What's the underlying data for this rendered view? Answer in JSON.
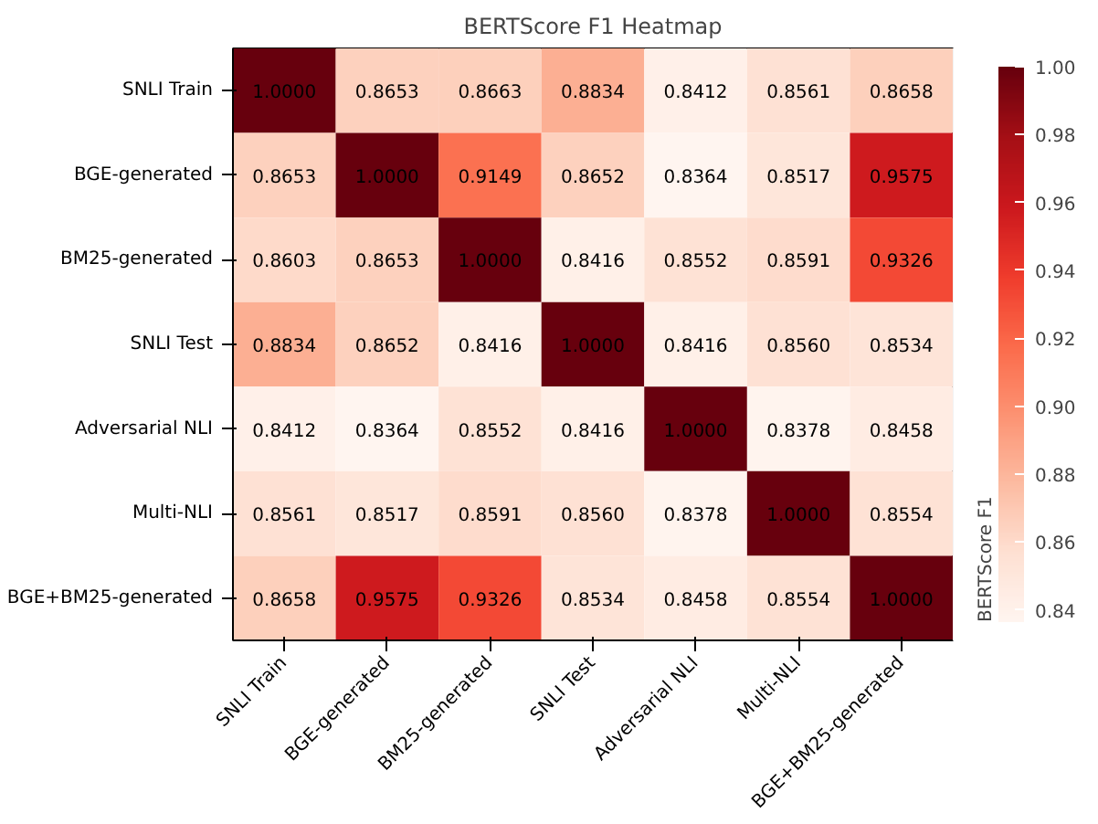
{
  "chart_data": {
    "type": "heatmap",
    "title": "BERTScore F1 Heatmap",
    "clabel": "BERTScore F1",
    "categories": [
      "SNLI Train",
      "BGE-generated",
      "BM25-generated",
      "SNLI Test",
      "Adversarial NLI",
      "Multi-NLI",
      "BGE+BM25-generated"
    ],
    "y_categories": [
      "SNLI Train",
      "BGE-generated",
      "BM25-generated",
      "SNLI Test",
      "Adversarial NLI",
      "Multi-NLI",
      "BGE+BM25-generated"
    ],
    "cells": [
      [
        1.0,
        0.8653,
        0.8663,
        0.8834,
        0.8412,
        0.8561,
        0.8658
      ],
      [
        0.8653,
        1.0,
        0.9149,
        0.8652,
        0.8364,
        0.8517,
        0.9575
      ],
      [
        0.8603,
        0.8653,
        1.0,
        0.8416,
        0.8552,
        0.8591,
        0.9326
      ],
      [
        0.8834,
        0.8652,
        0.8416,
        1.0,
        0.8416,
        0.856,
        0.8534
      ],
      [
        0.8412,
        0.8364,
        0.8552,
        0.8416,
        1.0,
        0.8378,
        0.8458
      ],
      [
        0.8561,
        0.8517,
        0.8591,
        0.856,
        0.8378,
        1.0,
        0.8554
      ],
      [
        0.8658,
        0.9575,
        0.9326,
        0.8534,
        0.8458,
        0.8554,
        1.0
      ]
    ],
    "clim": [
      0.8364,
      1.0
    ],
    "cticks": [
      {
        "value": 0.84,
        "label": "0.84"
      },
      {
        "value": 0.86,
        "label": "0.86"
      },
      {
        "value": 0.88,
        "label": "0.88"
      },
      {
        "value": 0.9,
        "label": "0.90"
      },
      {
        "value": 0.92,
        "label": "0.92"
      },
      {
        "value": 0.94,
        "label": "0.94"
      },
      {
        "value": 0.96,
        "label": "0.96"
      },
      {
        "value": 0.98,
        "label": "0.98"
      },
      {
        "value": 1.0,
        "label": "1.00"
      }
    ],
    "cell_labels": [
      [
        "1.0000",
        "0.8653",
        "0.8663",
        "0.8834",
        "0.8412",
        "0.8561",
        "0.8658"
      ],
      [
        "0.8653",
        "1.0000",
        "0.9149",
        "0.8652",
        "0.8364",
        "0.8517",
        "0.9575"
      ],
      [
        "0.8603",
        "0.8653",
        "1.0000",
        "0.8416",
        "0.8552",
        "0.8591",
        "0.9326"
      ],
      [
        "0.8834",
        "0.8652",
        "0.8416",
        "1.0000",
        "0.8416",
        "0.8560",
        "0.8534"
      ],
      [
        "0.8412",
        "0.8364",
        "0.8552",
        "0.8416",
        "1.0000",
        "0.8378",
        "0.8458"
      ],
      [
        "0.8561",
        "0.8517",
        "0.8591",
        "0.8560",
        "0.8378",
        "1.0000",
        "0.8554"
      ],
      [
        "0.8658",
        "0.9575",
        "0.9326",
        "0.8534",
        "0.8458",
        "0.8554",
        "1.0000"
      ]
    ]
  }
}
